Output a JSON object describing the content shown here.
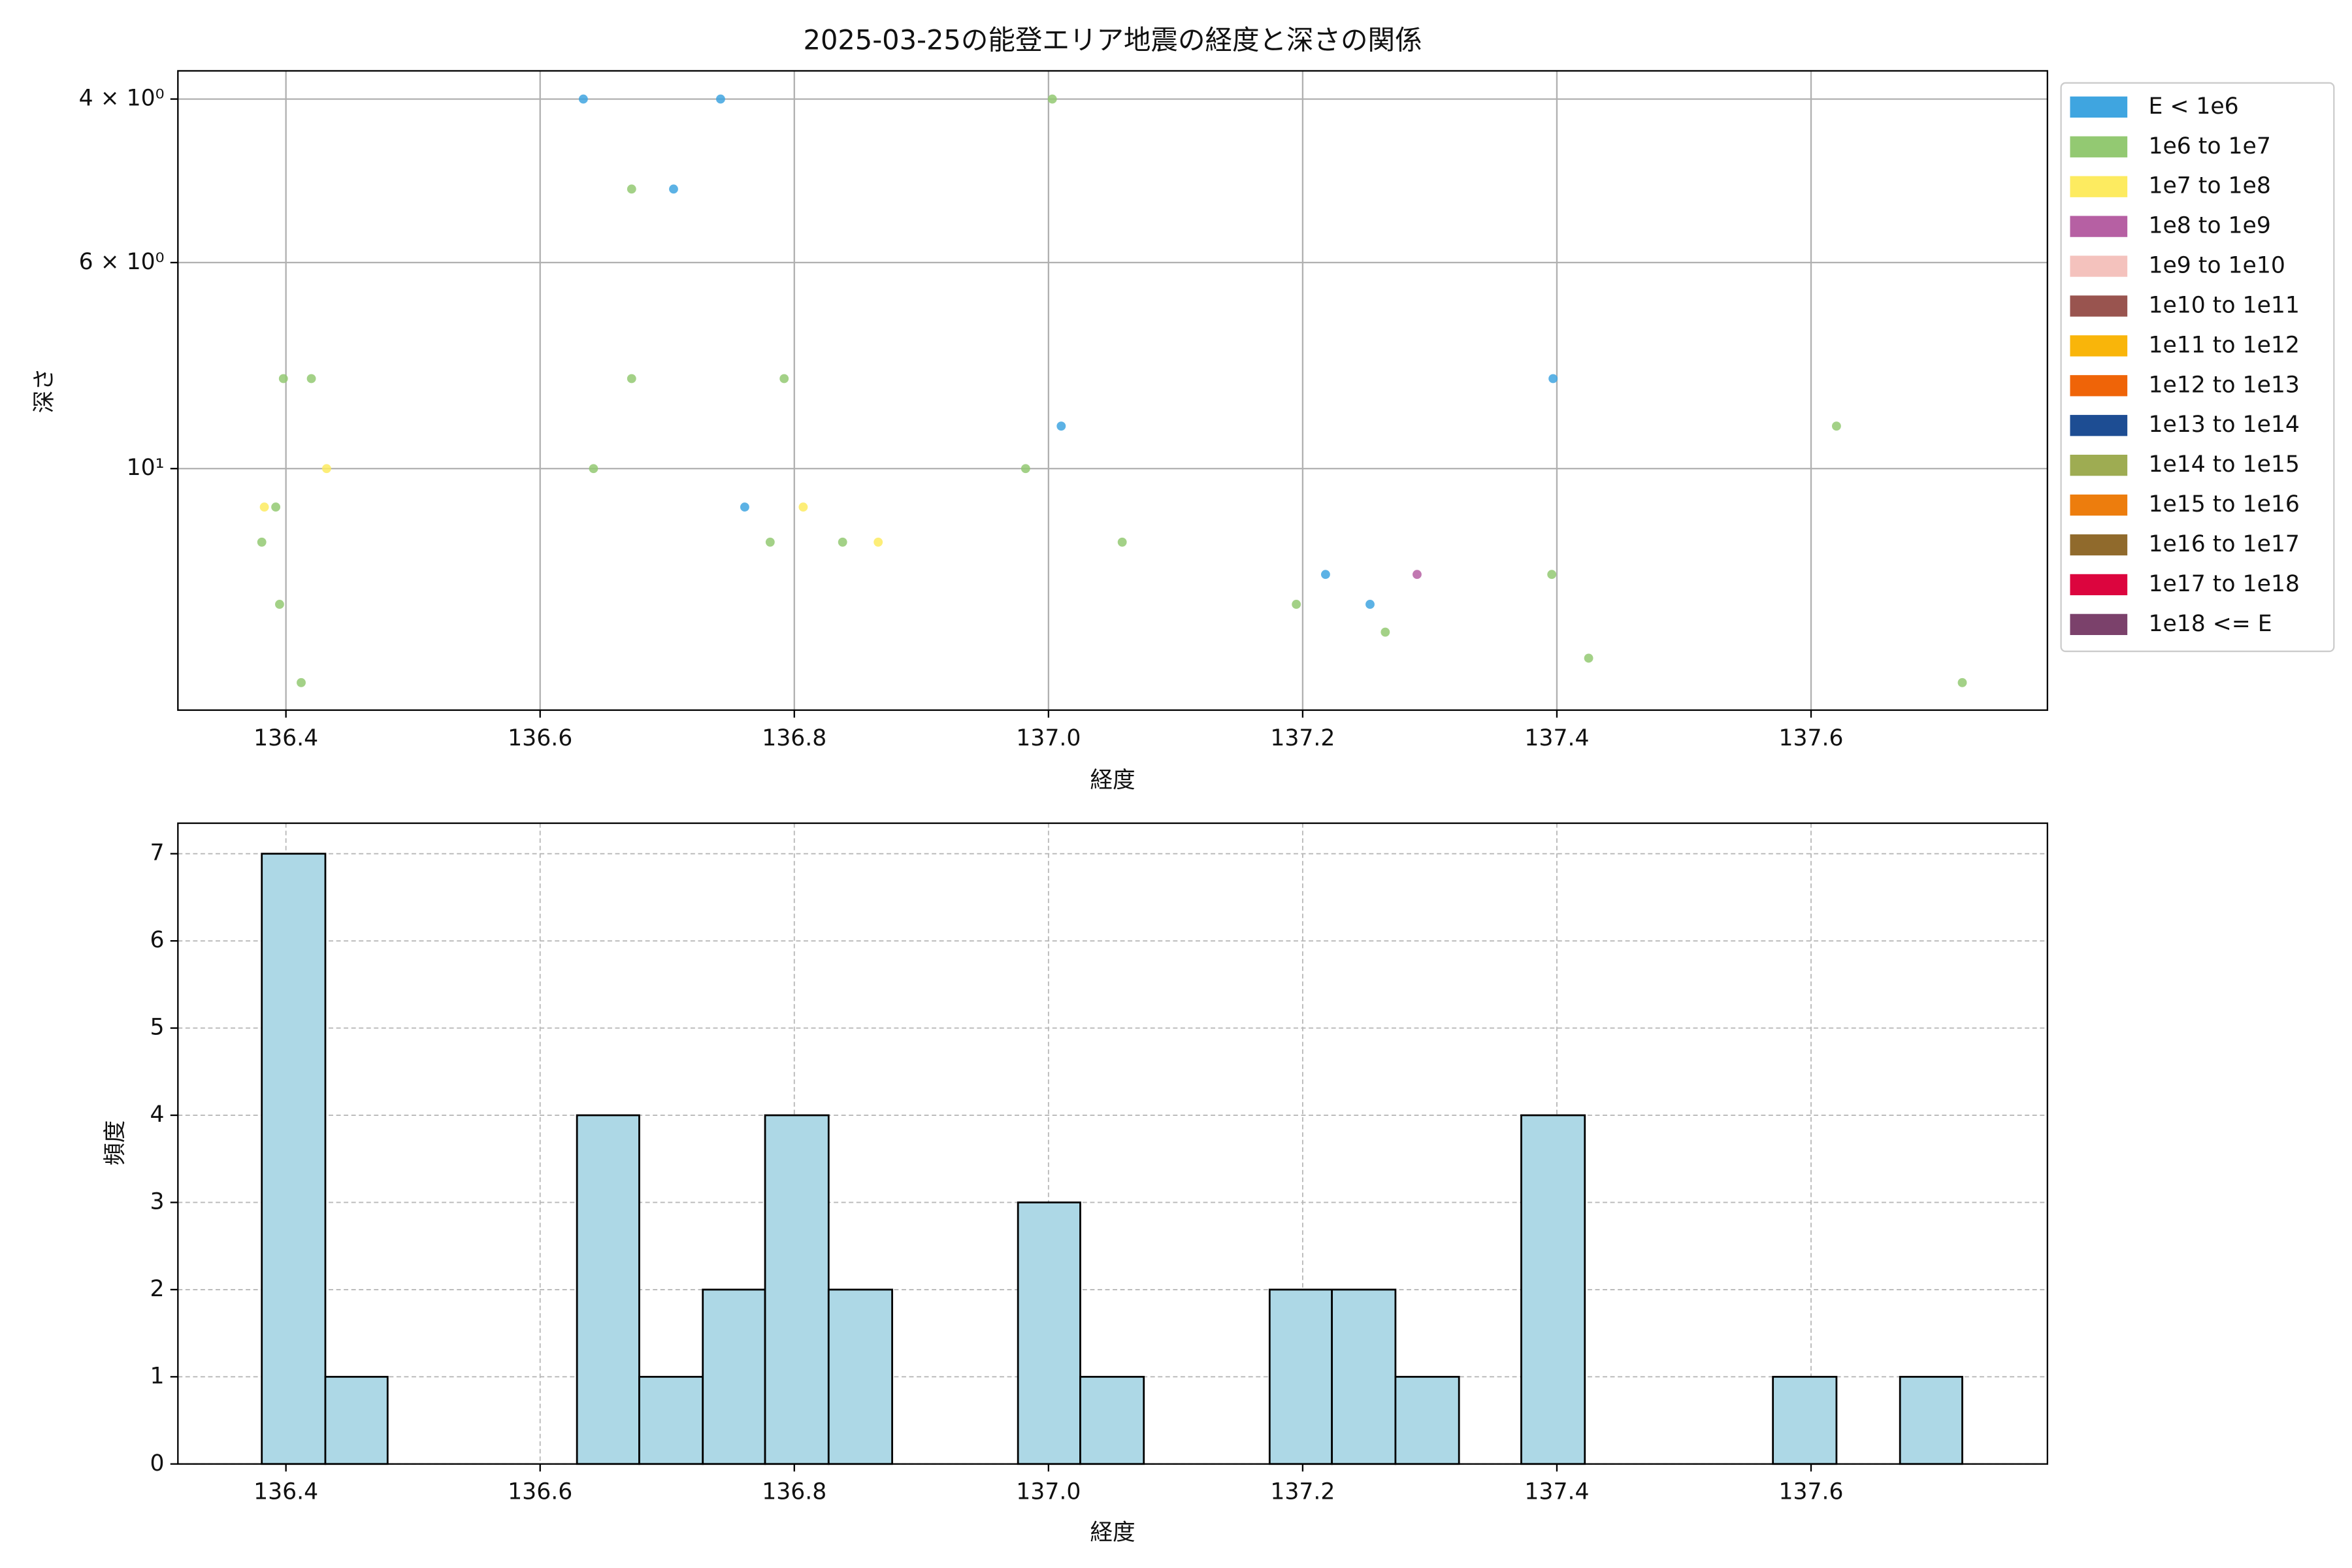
{
  "chart_data": [
    {
      "type": "scatter",
      "title": "2025-03-25の能登エリア地震の経度と深さの関係",
      "x_label": "経度",
      "y_label": "深さ",
      "y_scale": "log",
      "grid": true,
      "grid_style": "solid",
      "legend": "outside right",
      "xlim": [
        136.315,
        137.786
      ],
      "ylim": [
        18.2,
        3.73
      ],
      "xticks": [
        136.4,
        136.6,
        136.8,
        {
          "value": 137,
          "label": "137.0"
        },
        137.2,
        137.4,
        137.6
      ],
      "yticks": [
        {
          "value": 4,
          "label": "4 × 10⁰"
        },
        {
          "value": 6,
          "label": "6 × 10⁰"
        },
        {
          "value": 10,
          "label": "10¹"
        }
      ],
      "series": [
        {
          "name": "E < 1e6",
          "color": "#3fa5e0",
          "x": [
            136.634,
            136.742,
            136.705,
            137.397,
            137.01,
            136.761,
            137.218,
            137.253
          ],
          "values": [
            4,
            4,
            5,
            8,
            9,
            11,
            13,
            14
          ]
        },
        {
          "name": "1e6 to 1e7",
          "color": "#93c972",
          "x": [
            137.003,
            136.672,
            136.398,
            136.42,
            136.672,
            136.792,
            137.62,
            136.642,
            136.982,
            136.392,
            136.381,
            136.781,
            136.838,
            137.058,
            137.396,
            136.395,
            137.195,
            137.265,
            137.425,
            136.412,
            137.719
          ],
          "values": [
            4,
            5,
            8,
            8,
            8,
            8,
            9,
            10,
            10,
            11,
            12,
            12,
            12,
            12,
            13,
            14,
            14,
            15,
            16,
            17,
            17
          ]
        },
        {
          "name": "1e7 to 1e8",
          "color": "#fdeb60",
          "x": [
            136.432,
            136.383,
            136.807,
            136.866
          ],
          "values": [
            10,
            11,
            11,
            12
          ]
        },
        {
          "name": "1e8 to 1e9",
          "color": "#b660a3",
          "x": [
            137.29
          ],
          "values": [
            13
          ]
        },
        {
          "name": "1e9 to 1e10",
          "color": "#f4c2bd",
          "x": [],
          "values": []
        },
        {
          "name": "1e10 to 1e11",
          "color": "#99544f",
          "x": [],
          "values": []
        },
        {
          "name": "1e11 to 1e12",
          "color": "#f9b50a",
          "x": [],
          "values": []
        },
        {
          "name": "1e12 to 1e13",
          "color": "#ef6408",
          "x": [],
          "values": []
        },
        {
          "name": "1e13 to 1e14",
          "color": "#1d4d93",
          "x": [],
          "values": []
        },
        {
          "name": "1e14 to 1e15",
          "color": "#9eac52",
          "x": [],
          "values": []
        },
        {
          "name": "1e15 to 1e16",
          "color": "#ed7d0d",
          "x": [],
          "values": []
        },
        {
          "name": "1e16 to 1e17",
          "color": "#906a2c",
          "x": [],
          "values": []
        },
        {
          "name": "1e17 to 1e18",
          "color": "#dc053e",
          "x": [],
          "values": []
        },
        {
          "name": "1e18 <= E",
          "color": "#7b416b",
          "x": [],
          "values": []
        }
      ]
    },
    {
      "type": "histogram",
      "x_label": "経度",
      "y_label": "頻度",
      "color": "#add8e6",
      "edge_color": "#000000",
      "grid": true,
      "grid_style": "dashed",
      "xlim": [
        136.315,
        137.786
      ],
      "ylim": [
        0,
        7.35
      ],
      "xticks": [
        136.4,
        136.6,
        136.8,
        {
          "value": 137,
          "label": "137.0"
        },
        137.2,
        137.4,
        137.6
      ],
      "yticks": [
        0,
        1,
        2,
        3,
        4,
        5,
        6,
        7
      ],
      "bins": [
        136.381,
        136.431,
        136.48,
        136.53,
        136.579,
        136.629,
        136.678,
        136.728,
        136.777,
        136.827,
        136.877,
        136.926,
        136.976,
        137.025,
        137.075,
        137.124,
        137.174,
        137.223,
        137.273,
        137.323,
        137.372,
        137.422,
        137.471,
        137.521,
        137.57,
        137.62,
        137.67,
        137.719
      ],
      "values": [
        7,
        1,
        0,
        0,
        0,
        4,
        1,
        2,
        4,
        2,
        0,
        0,
        3,
        1,
        0,
        0,
        2,
        2,
        1,
        0,
        4,
        0,
        0,
        0,
        1,
        0,
        1
      ]
    }
  ]
}
